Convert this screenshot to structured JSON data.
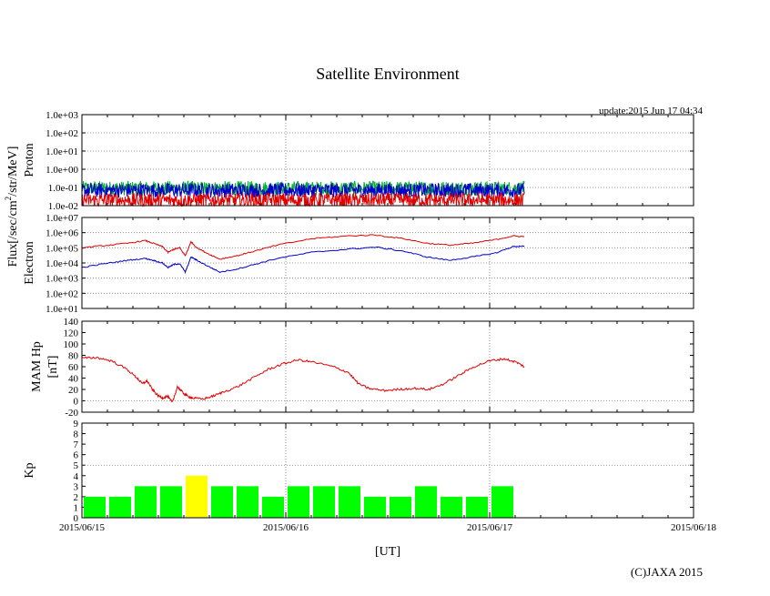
{
  "chart_data": {
    "title": "Satellite Environment",
    "update_text": "update:2015 Jun 17 04:34",
    "xlabel": "[UT]",
    "copyright": "(C)JAXA 2015",
    "shared_ylabel": "Flux[/sec/cm2/str/MeV]",
    "shared_ylabel_parts": {
      "base": "Flux[/sec/cm",
      "sup": "2",
      "tail": "/str/MeV]"
    },
    "x_ticks": [
      "2015/06/15",
      "2015/06/16",
      "2015/06/17",
      "2015/06/18"
    ],
    "x_range_days": [
      0,
      3
    ],
    "colors": {
      "red": "#e00000",
      "blue": "#0000cc",
      "green": "#00b030",
      "kp_green": "#00ff00",
      "kp_yellow": "#ffff00"
    },
    "panels": [
      {
        "id": "proton",
        "type": "line",
        "ylabel": "Proton",
        "log": true,
        "ylim_exp": [
          -2,
          3
        ],
        "y_ticks": [
          "1.0e+03",
          "1.0e+02",
          "1.0e+01",
          "1.0e+00",
          "1.0e-01",
          "1.0e-02"
        ],
        "series": [
          {
            "color": "green",
            "level": 0.09,
            "noise": true
          },
          {
            "color": "blue",
            "level": 0.07,
            "noise": true
          },
          {
            "color": "red",
            "level": 0.02,
            "noise": true
          }
        ]
      },
      {
        "id": "electron",
        "type": "line",
        "ylabel": "Electron",
        "log": true,
        "ylim_exp": [
          1,
          7
        ],
        "y_ticks": [
          "1.0e+07",
          "1.0e+06",
          "1.0e+05",
          "1.0e+04",
          "1.0e+03",
          "1.0e+02",
          "1.0e+01"
        ],
        "series": [
          {
            "color": "red",
            "points": [
              [
                0,
                100000.0
              ],
              [
                0.2,
                140000.0
              ],
              [
                0.4,
                200000.0
              ],
              [
                0.55,
                300000.0
              ],
              [
                0.62,
                200000.0
              ],
              [
                0.7,
                120000.0
              ],
              [
                0.75,
                50000.0
              ],
              [
                0.8,
                80000.0
              ],
              [
                0.85,
                100000.0
              ],
              [
                0.9,
                30000.0
              ],
              [
                0.95,
                250000.0
              ],
              [
                1.0,
                100000.0
              ],
              [
                1.1,
                40000.0
              ],
              [
                1.2,
                18000.0
              ],
              [
                1.35,
                30000.0
              ],
              [
                1.5,
                60000.0
              ],
              [
                1.7,
                150000.0
              ],
              [
                2.0,
                400000.0
              ],
              [
                2.3,
                600000.0
              ],
              [
                2.55,
                700000.0
              ],
              [
                2.8,
                400000.0
              ],
              [
                3.0,
                200000.0
              ],
              [
                3.2,
                150000.0
              ],
              [
                3.4,
                200000.0
              ],
              [
                3.6,
                350000.0
              ],
              [
                3.75,
                600000.0
              ],
              [
                3.85,
                550000.0
              ]
            ]
          },
          {
            "color": "blue",
            "points": [
              [
                0,
                5000.0
              ],
              [
                0.2,
                9000.0
              ],
              [
                0.4,
                15000.0
              ],
              [
                0.55,
                20000.0
              ],
              [
                0.62,
                15000.0
              ],
              [
                0.7,
                10000.0
              ],
              [
                0.75,
                5000.0
              ],
              [
                0.8,
                8000.0
              ],
              [
                0.85,
                9000.0
              ],
              [
                0.9,
                2500.0
              ],
              [
                0.95,
                25000.0
              ],
              [
                1.0,
                15000.0
              ],
              [
                1.1,
                6000.0
              ],
              [
                1.2,
                2500.0
              ],
              [
                1.35,
                4000.0
              ],
              [
                1.5,
                8000.0
              ],
              [
                1.7,
                20000.0
              ],
              [
                2.0,
                50000.0
              ],
              [
                2.3,
                80000.0
              ],
              [
                2.55,
                110000.0
              ],
              [
                2.8,
                60000.0
              ],
              [
                3.0,
                25000.0
              ],
              [
                3.2,
                15000.0
              ],
              [
                3.4,
                25000.0
              ],
              [
                3.6,
                45000.0
              ],
              [
                3.75,
                120000.0
              ],
              [
                3.85,
                130000.0
              ]
            ]
          }
        ]
      },
      {
        "id": "mam_hp",
        "type": "line",
        "ylabel": "MAM Hp",
        "ylabel2": "[nT]",
        "log": false,
        "ylim": [
          -20,
          140
        ],
        "y_ticks": [
          "140",
          "120",
          "100",
          "80",
          "60",
          "40",
          "20",
          "0",
          "-20"
        ],
        "series": [
          {
            "color": "red",
            "points": [
              [
                0,
                75
              ],
              [
                0.15,
                76
              ],
              [
                0.3,
                70
              ],
              [
                0.45,
                55
              ],
              [
                0.55,
                40
              ],
              [
                0.6,
                30
              ],
              [
                0.65,
                35
              ],
              [
                0.7,
                20
              ],
              [
                0.75,
                10
              ],
              [
                0.8,
                5
              ],
              [
                0.85,
                8
              ],
              [
                0.9,
                -3
              ],
              [
                0.95,
                25
              ],
              [
                1.0,
                15
              ],
              [
                1.05,
                8
              ],
              [
                1.1,
                5
              ],
              [
                1.2,
                3
              ],
              [
                1.3,
                8
              ],
              [
                1.4,
                15
              ],
              [
                1.55,
                25
              ],
              [
                1.7,
                40
              ],
              [
                1.85,
                55
              ],
              [
                2.0,
                65
              ],
              [
                2.15,
                72
              ],
              [
                2.3,
                68
              ],
              [
                2.5,
                60
              ],
              [
                2.65,
                50
              ],
              [
                2.75,
                30
              ],
              [
                2.85,
                22
              ],
              [
                3.0,
                18
              ],
              [
                3.15,
                20
              ],
              [
                3.3,
                22
              ],
              [
                3.45,
                20
              ],
              [
                3.6,
                30
              ],
              [
                3.75,
                45
              ],
              [
                3.9,
                60
              ],
              [
                4.05,
                70
              ],
              [
                4.2,
                74
              ],
              [
                4.32,
                68
              ],
              [
                4.4,
                60
              ]
            ]
          }
        ]
      },
      {
        "id": "kp",
        "type": "bar",
        "ylabel": "Kp",
        "ylim": [
          0,
          9
        ],
        "y_ticks": [
          "9",
          "8",
          "7",
          "6",
          "5",
          "4",
          "3",
          "2",
          "1",
          "0"
        ],
        "bar_width_hours": 3,
        "values": [
          2,
          2,
          3,
          3,
          4,
          3,
          3,
          2,
          3,
          3,
          3,
          2,
          2,
          3,
          2,
          2,
          3
        ],
        "highlight": {
          "threshold": 4,
          "color": "kp_yellow"
        }
      }
    ]
  }
}
